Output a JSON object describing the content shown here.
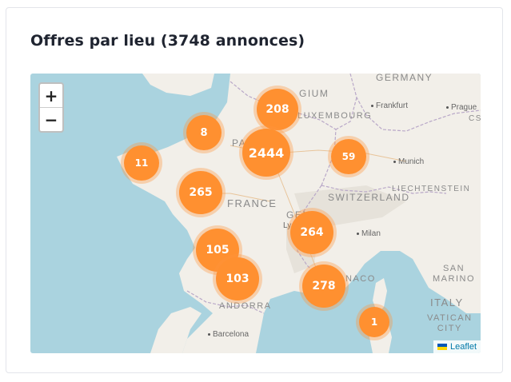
{
  "card": {
    "title": "Offres par lieu (3748 annonces)"
  },
  "map": {
    "zoom_in_label": "+",
    "zoom_out_label": "−",
    "attribution": "Leaflet",
    "places": {
      "germany": "GERMANY",
      "belgium": "GIUM",
      "luxembourg": "LUXEMBOURG",
      "frankfurt": "Frankfurt",
      "prague": "Prague",
      "cs": "CS",
      "paris": "PAR",
      "france": "FRANCE",
      "munich": "Munich",
      "liechtenstein": "LIECHTENSTEIN",
      "switzerland": "SWITZERLAND",
      "geneva": "GENE",
      "lyon": "Ly",
      "milan": "Milan",
      "san_marino": "SAN\nMARINO",
      "monaco": "NACO",
      "andorra": "ANDORRA",
      "italy": "ITALY",
      "vatican": "VATICAN\nCITY",
      "barcelona": "Barcelona"
    },
    "clusters": [
      {
        "id": "belgium-border",
        "count": "208"
      },
      {
        "id": "normandy",
        "count": "8"
      },
      {
        "id": "paris",
        "count": "2444"
      },
      {
        "id": "alsace",
        "count": "59"
      },
      {
        "id": "brittany",
        "count": "11"
      },
      {
        "id": "loire",
        "count": "265"
      },
      {
        "id": "lyon",
        "count": "264"
      },
      {
        "id": "bordeaux",
        "count": "105"
      },
      {
        "id": "toulouse",
        "count": "103"
      },
      {
        "id": "provence",
        "count": "278"
      },
      {
        "id": "corsica",
        "count": "1"
      }
    ]
  }
}
